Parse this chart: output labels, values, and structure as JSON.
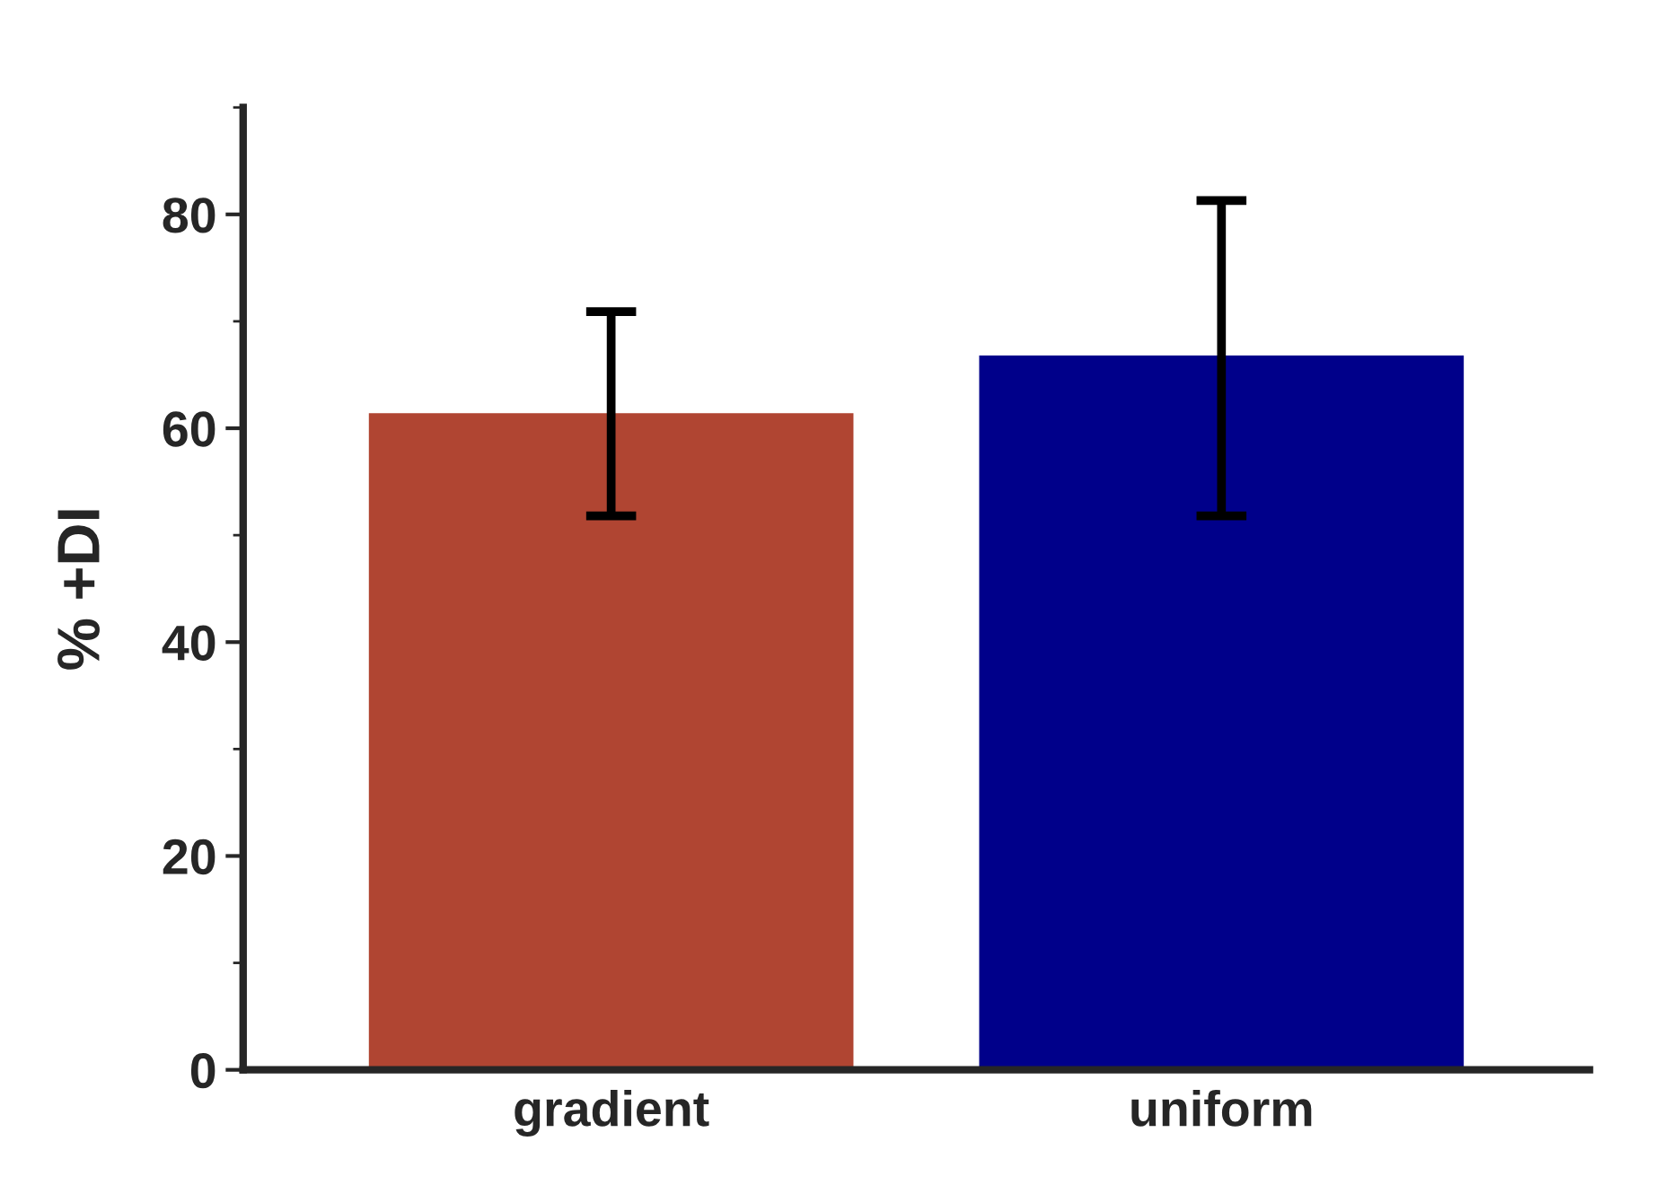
{
  "chart_data": {
    "type": "bar",
    "ylabel": "% +DI",
    "categories": [
      "gradient",
      "uniform"
    ],
    "values": [
      61.4,
      66.8
    ],
    "colors": [
      "#b04532",
      "#00008a"
    ],
    "errors": [
      [
        51.8,
        70.9
      ],
      [
        51.8,
        81.3
      ]
    ],
    "ylim": [
      0,
      90
    ],
    "yticks": [
      0,
      {
        "value": 10,
        "label": null
      },
      20,
      {
        "value": 30,
        "label": null
      },
      40,
      {
        "value": 50,
        "label": null
      },
      60,
      {
        "value": 70,
        "label": null
      },
      80,
      {
        "value": 90,
        "label": null
      }
    ],
    "grid": false
  }
}
